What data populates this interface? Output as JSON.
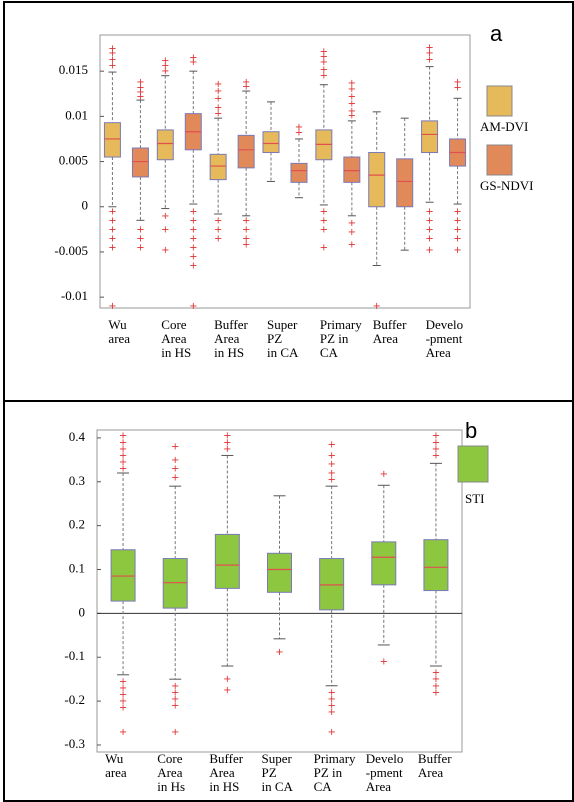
{
  "chart_data": [
    {
      "type": "box",
      "label": "a",
      "categories": [
        "Wu\narea",
        "Core\nArea\nin HS",
        "Buffer\nArea\nin HS",
        "Super\nPZ\nin CA",
        "Primary\nPZ in\nCA",
        "Buffer\nArea",
        "Develo\n-pment\nArea"
      ],
      "ylim": [
        -0.0112,
        0.019
      ],
      "yticks": [
        -0.01,
        -0.005,
        0,
        0.005,
        0.01,
        0.015
      ],
      "legend": "right",
      "series": [
        {
          "name": "AM-DVI",
          "color": "#e6b95a",
          "boxes": [
            {
              "whislo": 0.0,
              "q1": 0.0055,
              "med": 0.0075,
              "q3": 0.0093,
              "whishi": 0.0149,
              "fliers": [
                0.0175,
                0.017,
                0.0163,
                0.0156,
                -0.0005,
                -0.0015,
                -0.0025,
                -0.0035,
                -0.0045,
                -0.011
              ]
            },
            {
              "whislo": -0.0002,
              "q1": 0.0052,
              "med": 0.007,
              "q3": 0.0085,
              "whishi": 0.0145,
              "fliers": [
                0.0162,
                0.0156,
                0.015,
                -0.001,
                -0.0025,
                -0.0048
              ]
            },
            {
              "whislo": -0.0008,
              "q1": 0.003,
              "med": 0.0045,
              "q3": 0.0058,
              "whishi": 0.0098,
              "fliers": [
                0.0136,
                0.0128,
                0.012,
                0.011,
                0.0103,
                -0.0015,
                -0.0025,
                -0.0035
              ]
            },
            {
              "whislo": 0.0028,
              "q1": 0.006,
              "med": 0.007,
              "q3": 0.0083,
              "whishi": 0.0116,
              "fliers": []
            },
            {
              "whislo": 0.0002,
              "q1": 0.0052,
              "med": 0.0069,
              "q3": 0.0085,
              "whishi": 0.0135,
              "fliers": [
                0.0172,
                0.0166,
                0.016,
                0.0152,
                0.0145,
                -0.0005,
                -0.0015,
                -0.0025,
                -0.0045
              ]
            },
            {
              "whislo": -0.0065,
              "q1": 0.0,
              "med": 0.0035,
              "q3": 0.006,
              "whishi": 0.0105,
              "fliers": [
                -0.011
              ]
            },
            {
              "whislo": 0.0005,
              "q1": 0.006,
              "med": 0.008,
              "q3": 0.0095,
              "whishi": 0.0155,
              "fliers": [
                0.0176,
                0.017,
                0.0163,
                -0.0005,
                -0.0015,
                -0.0025,
                -0.0035,
                -0.0048
              ]
            }
          ]
        },
        {
          "name": "GS-NDVI",
          "color": "#e2895a",
          "boxes": [
            {
              "whislo": -0.0015,
              "q1": 0.0033,
              "med": 0.005,
              "q3": 0.0065,
              "whishi": 0.0118,
              "fliers": [
                0.0138,
                0.0132,
                0.0127,
                0.0122,
                -0.0025,
                -0.0035,
                -0.0045
              ]
            },
            {
              "whislo": 0.0003,
              "q1": 0.0063,
              "med": 0.0083,
              "q3": 0.0103,
              "whishi": 0.015,
              "fliers": [
                0.0165,
                0.016,
                -0.0005,
                -0.0015,
                -0.0025,
                -0.0035,
                -0.0045,
                -0.0055,
                -0.0065,
                -0.011
              ]
            },
            {
              "whislo": -0.001,
              "q1": 0.0043,
              "med": 0.0063,
              "q3": 0.0079,
              "whishi": 0.0128,
              "fliers": [
                0.0138,
                0.0133,
                -0.0015,
                -0.0025,
                -0.0035,
                -0.0042
              ]
            },
            {
              "whislo": 0.001,
              "q1": 0.0027,
              "med": 0.004,
              "q3": 0.0048,
              "whishi": 0.0075,
              "fliers": [
                0.0088,
                0.0082
              ]
            },
            {
              "whislo": -0.001,
              "q1": 0.0027,
              "med": 0.004,
              "q3": 0.0055,
              "whishi": 0.0095,
              "fliers": [
                0.0137,
                0.013,
                0.0122,
                0.0114,
                0.0106,
                0.0101,
                -0.0018,
                -0.0028,
                -0.0042
              ]
            },
            {
              "whislo": -0.0048,
              "q1": 0.0,
              "med": 0.0028,
              "q3": 0.0053,
              "whishi": 0.0098,
              "fliers": []
            },
            {
              "whislo": 0.0003,
              "q1": 0.0045,
              "med": 0.006,
              "q3": 0.0075,
              "whishi": 0.012,
              "fliers": [
                0.0138,
                0.0132,
                -0.0005,
                -0.0015,
                -0.0025,
                -0.0035,
                -0.0048
              ]
            }
          ]
        }
      ]
    },
    {
      "type": "box",
      "label": "b",
      "categories": [
        "Wu\narea",
        "Core\nArea\nin Hs",
        "Buffer\nArea\nin HS",
        "Super\nPZ\nin CA",
        "Primary\nPZ in\nCA",
        "Develo\n-pment\nArea",
        "Buffer\nArea"
      ],
      "ylim": [
        -0.316,
        0.418
      ],
      "yticks": [
        -0.3,
        -0.2,
        -0.1,
        0,
        0.1,
        0.2,
        0.3,
        0.4
      ],
      "legend": "right",
      "zero_line": true,
      "series": [
        {
          "name": "STI",
          "color": "#8dc63f",
          "boxes": [
            {
              "whislo": -0.14,
              "q1": 0.028,
              "med": 0.085,
              "q3": 0.145,
              "whishi": 0.32,
              "fliers": [
                0.405,
                0.39,
                0.375,
                0.36,
                0.345,
                0.33,
                -0.155,
                -0.17,
                -0.185,
                -0.2,
                -0.215,
                -0.27
              ]
            },
            {
              "whislo": -0.15,
              "q1": 0.012,
              "med": 0.07,
              "q3": 0.125,
              "whishi": 0.29,
              "fliers": [
                0.38,
                0.35,
                0.33,
                0.31,
                -0.165,
                -0.18,
                -0.195,
                -0.21,
                -0.27
              ]
            },
            {
              "whislo": -0.12,
              "q1": 0.057,
              "med": 0.11,
              "q3": 0.18,
              "whishi": 0.36,
              "fliers": [
                0.405,
                0.39,
                0.375,
                -0.15,
                -0.175
              ]
            },
            {
              "whislo": -0.058,
              "q1": 0.048,
              "med": 0.1,
              "q3": 0.137,
              "whishi": 0.268,
              "fliers": [
                -0.088
              ]
            },
            {
              "whislo": -0.165,
              "q1": 0.008,
              "med": 0.065,
              "q3": 0.125,
              "whishi": 0.29,
              "fliers": [
                0.385,
                0.36,
                0.34,
                0.32,
                0.305,
                -0.18,
                -0.195,
                -0.21,
                -0.225,
                -0.27
              ]
            },
            {
              "whislo": -0.072,
              "q1": 0.065,
              "med": 0.128,
              "q3": 0.163,
              "whishi": 0.292,
              "fliers": [
                0.318,
                -0.11
              ]
            },
            {
              "whislo": -0.12,
              "q1": 0.052,
              "med": 0.105,
              "q3": 0.168,
              "whishi": 0.342,
              "fliers": [
                0.405,
                0.39,
                0.375,
                0.36,
                -0.135,
                -0.15,
                -0.165,
                -0.18
              ]
            }
          ]
        }
      ]
    }
  ]
}
